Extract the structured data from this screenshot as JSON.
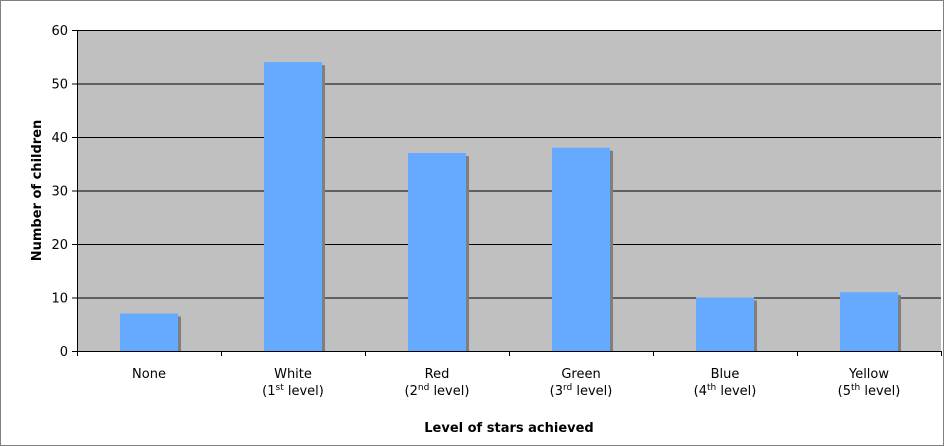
{
  "chart_data": {
    "type": "bar",
    "categories": [
      {
        "line1": "None",
        "line2_pre": "",
        "line2_sup": "",
        "line2_post": ""
      },
      {
        "line1": "White",
        "line2_pre": "(1",
        "line2_sup": "st",
        "line2_post": " level)"
      },
      {
        "line1": "Red",
        "line2_pre": "(2",
        "line2_sup": "nd",
        "line2_post": " level)"
      },
      {
        "line1": "Green",
        "line2_pre": "(3",
        "line2_sup": "rd",
        "line2_post": " level)"
      },
      {
        "line1": "Blue",
        "line2_pre": "(4",
        "line2_sup": "th",
        "line2_post": " level)"
      },
      {
        "line1": "Yellow",
        "line2_pre": "(5",
        "line2_sup": "th",
        "line2_post": " level)"
      }
    ],
    "values": [
      7,
      54,
      37,
      38,
      10,
      11
    ],
    "xlabel": "Level of stars achieved",
    "ylabel": "Number of children",
    "ylim": [
      0,
      60
    ],
    "yticks": [
      0,
      10,
      20,
      30,
      40,
      50,
      60
    ],
    "grid": true,
    "colors": {
      "bar": "#66aaff",
      "bar_shadow": "#7f7f7f",
      "plot_background": "#c0c0c0",
      "gridline": "#000000"
    }
  }
}
